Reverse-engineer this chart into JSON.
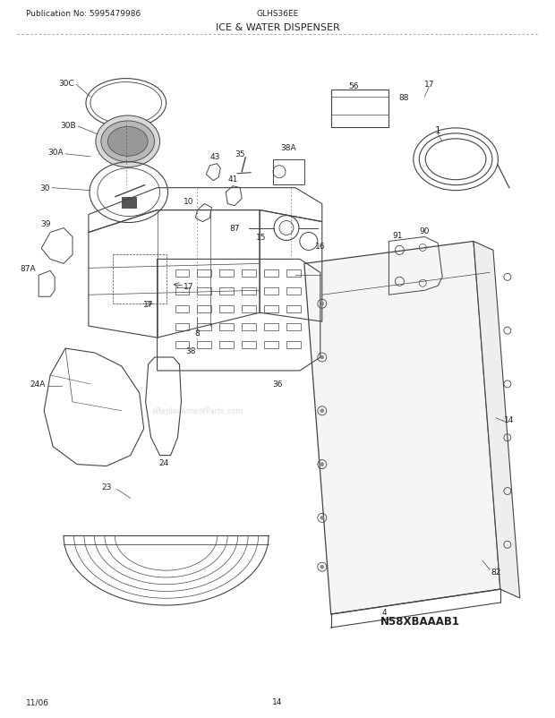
{
  "title": "ICE & WATER DISPENSER",
  "pub_no": "Publication No: 5995479986",
  "model": "GLHS36EE",
  "page": "14",
  "date": "11/06",
  "diagram_code": "N58XBAAAB1",
  "bg_color": "#ffffff",
  "line_color": "#444444",
  "text_color": "#222222",
  "figsize": [
    6.2,
    8.03
  ],
  "dpi": 100
}
